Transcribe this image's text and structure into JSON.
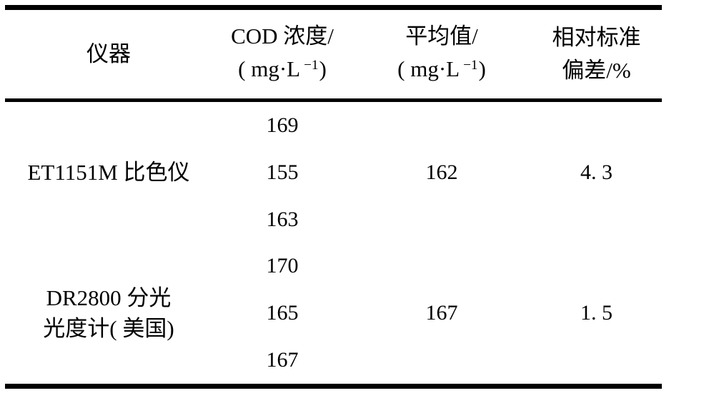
{
  "table": {
    "header": {
      "instrument": "仪器",
      "cod": {
        "title": "COD 浓度/",
        "unit_prefix": "( mg·L",
        "unit_sup": "−1",
        "unit_suffix": ")"
      },
      "mean": {
        "title": "平均值/",
        "unit_prefix": "( mg·L",
        "unit_sup": "−1",
        "unit_suffix": ")"
      },
      "rsd": {
        "title_line1": "相对标准",
        "title_line2": "偏差/%"
      }
    },
    "groups": [
      {
        "instrument_line1": "ET1151M 比色仪",
        "instrument_line2": "",
        "cod_values": [
          "169",
          "155",
          "163"
        ],
        "mean": "162",
        "rsd": "4. 3"
      },
      {
        "instrument_line1": "DR2800 分光",
        "instrument_line2": "光度计( 美国)",
        "cod_values": [
          "170",
          "165",
          "167"
        ],
        "mean": "167",
        "rsd": "1. 5"
      }
    ]
  },
  "chart_data": {
    "type": "table",
    "columns": [
      "仪器",
      "COD 浓度/( mg·L−1)",
      "平均值/( mg·L−1)",
      "相对标准偏差/%"
    ],
    "rows": [
      [
        "ET1151M 比色仪",
        "169",
        "162",
        "4. 3"
      ],
      [
        "ET1151M 比色仪",
        "155",
        "162",
        "4. 3"
      ],
      [
        "ET1151M 比色仪",
        "163",
        "162",
        "4. 3"
      ],
      [
        "DR2800 分光光度计( 美国)",
        "170",
        "167",
        "1. 5"
      ],
      [
        "DR2800 分光光度计( 美国)",
        "165",
        "167",
        "1. 5"
      ],
      [
        "DR2800 分光光度计( 美国)",
        "167",
        "167",
        "1. 5"
      ]
    ]
  },
  "colors": {
    "background": "#ffffff",
    "text": "#000000",
    "rule": "#000000"
  }
}
